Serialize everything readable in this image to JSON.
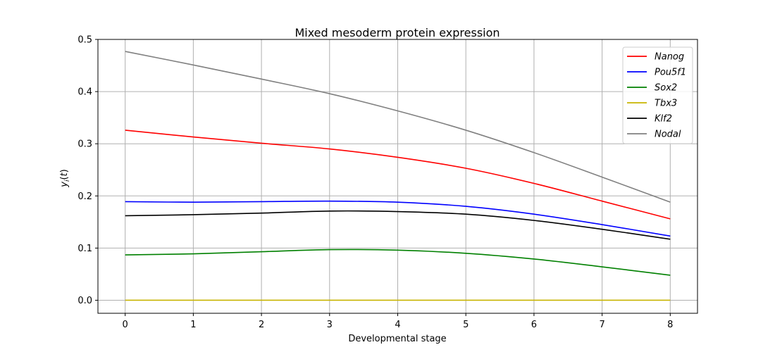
{
  "chart_data": {
    "type": "line",
    "title": "Mixed mesoderm protein expression",
    "xlabel": "Developmental stage",
    "ylabel": "y_i(t)",
    "xlim": [
      -0.4,
      8.4
    ],
    "ylim": [
      -0.025,
      0.5
    ],
    "xticks": [
      "0",
      "1",
      "2",
      "3",
      "4",
      "5",
      "6",
      "7",
      "8"
    ],
    "yticks": [
      "0.0",
      "0.1",
      "0.2",
      "0.3",
      "0.4",
      "0.5"
    ],
    "grid": true,
    "legend_position": "top-right",
    "x": [
      0,
      1,
      2,
      3,
      4,
      5,
      6,
      7,
      8
    ],
    "series": [
      {
        "name": "Nanog",
        "color": "#ff0000",
        "values": [
          0.326,
          0.313,
          0.301,
          0.29,
          0.274,
          0.253,
          0.224,
          0.19,
          0.156
        ]
      },
      {
        "name": "Pou5f1",
        "color": "#0000ff",
        "values": [
          0.189,
          0.188,
          0.189,
          0.19,
          0.188,
          0.18,
          0.165,
          0.145,
          0.123
        ]
      },
      {
        "name": "Sox2",
        "color": "#008000",
        "values": [
          0.087,
          0.089,
          0.093,
          0.097,
          0.096,
          0.09,
          0.079,
          0.064,
          0.048
        ]
      },
      {
        "name": "Tbx3",
        "color": "#c8b400",
        "values": [
          0.0,
          0.0,
          0.0,
          0.0,
          0.0,
          0.0,
          0.0,
          0.0,
          0.0
        ]
      },
      {
        "name": "Klf2",
        "color": "#000000",
        "values": [
          0.162,
          0.164,
          0.167,
          0.171,
          0.17,
          0.165,
          0.153,
          0.136,
          0.117
        ]
      },
      {
        "name": "Nodal",
        "color": "#808080",
        "values": [
          0.477,
          0.451,
          0.424,
          0.396,
          0.363,
          0.326,
          0.283,
          0.236,
          0.188
        ]
      }
    ]
  }
}
